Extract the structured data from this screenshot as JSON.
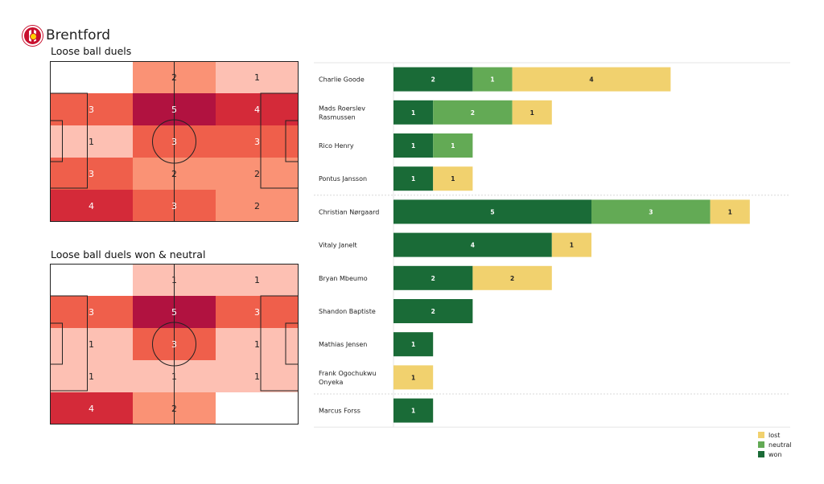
{
  "header": {
    "team": "Brentford",
    "logo_icon": "brentford-crest-icon"
  },
  "colors": {
    "won": "#1a6b37",
    "neutral": "#63aa55",
    "lost": "#f1d16e",
    "heat_scale": [
      "#ffffff",
      "#fdc0b3",
      "#fa9275",
      "#ef5f4b",
      "#d42a39",
      "#b11240"
    ]
  },
  "legend": [
    {
      "key": "lost",
      "label": "lost"
    },
    {
      "key": "neutral",
      "label": "neutral"
    },
    {
      "key": "won",
      "label": "won"
    }
  ],
  "chart_data": [
    {
      "type": "heatmap",
      "title": "Loose ball duels",
      "grid": [
        [
          null,
          2,
          1
        ],
        [
          3,
          5,
          4
        ],
        [
          1,
          3,
          3
        ],
        [
          3,
          2,
          2
        ],
        [
          4,
          3,
          2
        ]
      ]
    },
    {
      "type": "heatmap",
      "title": "Loose ball duels won & neutral",
      "grid": [
        [
          null,
          1,
          1
        ],
        [
          3,
          5,
          3
        ],
        [
          1,
          3,
          1
        ],
        [
          1,
          1,
          1
        ],
        [
          4,
          2,
          null
        ]
      ]
    },
    {
      "type": "bar",
      "orientation": "horizontal",
      "stacked": true,
      "categories": [
        "Charlie Goode",
        "Mads Roerslev Rasmussen",
        "Rico Henry",
        "Pontus Jansson",
        "Christian Nørgaard",
        "Vitaly Janelt",
        "Bryan Mbeumo",
        "Shandon Baptiste",
        "Mathias Jensen",
        "Frank Ogochukwu Onyeka",
        "Marcus Forss"
      ],
      "category_lines": [
        [
          "Charlie Goode"
        ],
        [
          "Mads Roerslev",
          "Rasmussen"
        ],
        [
          "Rico Henry"
        ],
        [
          "Pontus Jansson"
        ],
        [
          "Christian Nørgaard"
        ],
        [
          "Vitaly Janelt"
        ],
        [
          "Bryan Mbeumo"
        ],
        [
          "Shandon Baptiste"
        ],
        [
          "Mathias Jensen"
        ],
        [
          "Frank Ogochukwu",
          "Onyeka"
        ],
        [
          "Marcus Forss"
        ]
      ],
      "groups": [
        "defenders",
        "defenders",
        "defenders",
        "defenders",
        "midfielders",
        "midfielders",
        "midfielders",
        "midfielders",
        "midfielders",
        "midfielders",
        "forwards"
      ],
      "series": [
        {
          "name": "won",
          "values": [
            2,
            1,
            1,
            1,
            5,
            4,
            2,
            2,
            1,
            0,
            1
          ]
        },
        {
          "name": "neutral",
          "values": [
            1,
            2,
            1,
            0,
            3,
            0,
            0,
            0,
            0,
            0,
            0
          ]
        },
        {
          "name": "lost",
          "values": [
            4,
            1,
            0,
            1,
            1,
            1,
            2,
            0,
            0,
            1,
            0
          ]
        }
      ],
      "xlim": [
        0,
        10
      ]
    }
  ]
}
